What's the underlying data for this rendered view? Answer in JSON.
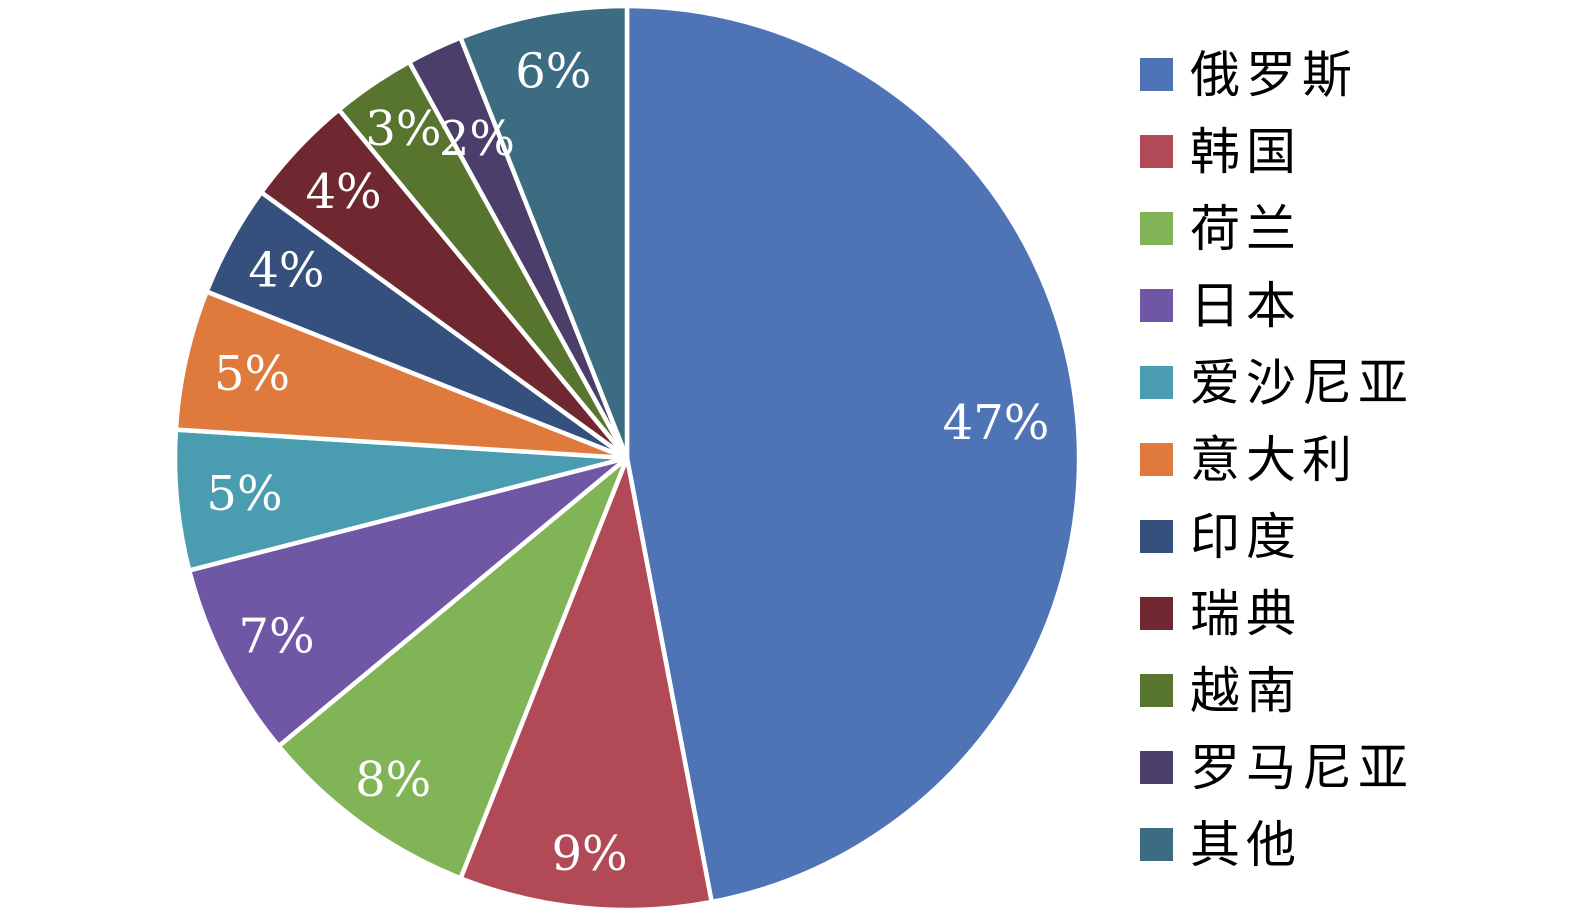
{
  "chart_data": {
    "type": "pie",
    "title": "",
    "legend_position": "right",
    "start_angle_deg": 0,
    "direction": "clockwise",
    "background_color": "#FFFFFF",
    "slice_separator_color": "#FFFFFF",
    "value_label_color": "#FFFFFF",
    "legend_text_color": "#000000",
    "slices": [
      {
        "key": "russia",
        "label": "俄罗斯",
        "value": 47,
        "value_label": "47%",
        "color": "#4F74B6",
        "label_r_frac": 0.82
      },
      {
        "key": "south-korea",
        "label": "韩国",
        "value": 9,
        "value_label": "9%",
        "color": "#B14A56",
        "label_r_frac": 0.88
      },
      {
        "key": "netherlands",
        "label": "荷兰",
        "value": 8,
        "value_label": "8%",
        "color": "#80B457",
        "label_r_frac": 0.88
      },
      {
        "key": "japan",
        "label": "日本",
        "value": 7,
        "value_label": "7%",
        "color": "#6F57A5",
        "label_r_frac": 0.87
      },
      {
        "key": "estonia",
        "label": "爱沙尼亚",
        "value": 5,
        "value_label": "5%",
        "color": "#4A9CB0",
        "label_r_frac": 0.85
      },
      {
        "key": "italy",
        "label": "意大利",
        "value": 5,
        "value_label": "5%",
        "color": "#DF7A3C",
        "label_r_frac": 0.85
      },
      {
        "key": "india",
        "label": "印度",
        "value": 4,
        "value_label": "4%",
        "color": "#35507D",
        "label_r_frac": 0.86
      },
      {
        "key": "sweden",
        "label": "瑞典",
        "value": 4,
        "value_label": "4%",
        "color": "#6F2830",
        "label_r_frac": 0.86
      },
      {
        "key": "vietnam",
        "label": "越南",
        "value": 3,
        "value_label": "3%",
        "color": "#587530",
        "label_r_frac": 0.88
      },
      {
        "key": "romania",
        "label": "罗马尼亚",
        "value": 2,
        "value_label": "2%",
        "color": "#4C3E6B",
        "label_r_frac": 0.78
      },
      {
        "key": "other",
        "label": "其他",
        "value": 6,
        "value_label": "6%",
        "color": "#3C6C82",
        "label_r_frac": 0.87
      }
    ]
  }
}
